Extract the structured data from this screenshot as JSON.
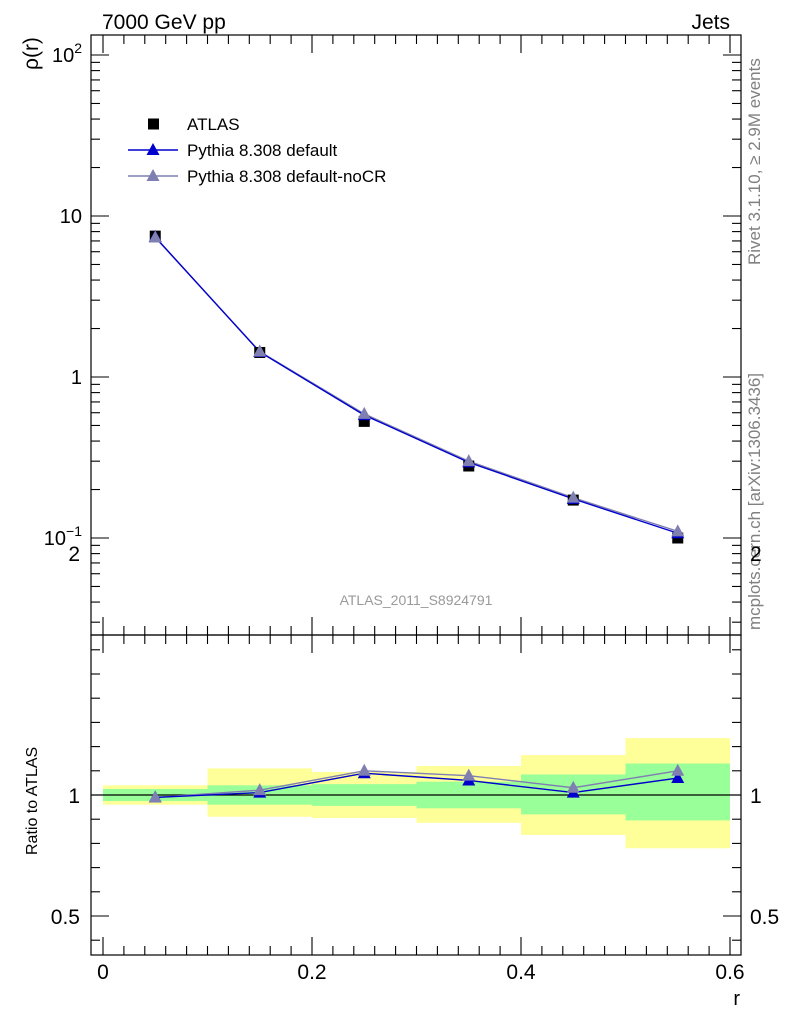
{
  "header": {
    "left_title": "7000 GeV pp",
    "right_title": "Jets"
  },
  "side_text": {
    "rivet": "Rivet 3.1.10, ≥ 2.9M events",
    "mcplots": "mcplots.cern.ch [arXiv:1306.3436]"
  },
  "analysis_label": "ATLAS_2011_S8924791",
  "colors": {
    "data": "#000000",
    "default": "#0000cc",
    "noCR": "#7f7fb2",
    "band_inner": "#99ff99",
    "band_outer": "#ffff99"
  },
  "chart_data": [
    {
      "type": "line",
      "scale": "log",
      "ylabel": "ρ(r)",
      "ylim": [
        0.03,
        130
      ],
      "xlim": [
        -0.015,
        0.6
      ],
      "y_tick_labels": [
        "10−1",
        "1",
        "10",
        "102"
      ],
      "legend": {
        "placement": "top-left",
        "entries": [
          "ATLAS",
          "Pythia 8.308 default",
          "Pythia 8.308 default-noCR"
        ]
      },
      "x": [
        0.05,
        0.15,
        0.25,
        0.35,
        0.45,
        0.55
      ],
      "series": [
        {
          "name": "ATLAS",
          "marker": "square",
          "values": [
            7.5,
            1.42,
            0.53,
            0.28,
            0.172,
            0.1
          ]
        },
        {
          "name": "Pythia 8.308 default",
          "marker": "triangle",
          "values": [
            7.4,
            1.43,
            0.58,
            0.295,
            0.175,
            0.107
          ]
        },
        {
          "name": "Pythia 8.308 default-noCR",
          "marker": "triangle",
          "values": [
            7.35,
            1.44,
            0.59,
            0.3,
            0.178,
            0.11
          ]
        }
      ]
    },
    {
      "type": "line",
      "ylabel": "Ratio to ATLAS",
      "xlabel": "r",
      "ylim": [
        0.35,
        2.25
      ],
      "xlim": [
        -0.015,
        0.6
      ],
      "x_tick_labels": [
        "0",
        "0.2",
        "0.4",
        "0.6"
      ],
      "y_tick_labels": [
        "0.5",
        "1",
        "2"
      ],
      "bands": [
        {
          "xlow": 0.0,
          "xhigh": 0.1,
          "inner": [
            0.975,
            1.025
          ],
          "outer": [
            0.96,
            1.04
          ]
        },
        {
          "xlow": 0.1,
          "xhigh": 0.2,
          "inner": [
            0.96,
            1.04
          ],
          "outer": [
            0.91,
            1.11
          ]
        },
        {
          "xlow": 0.2,
          "xhigh": 0.3,
          "inner": [
            0.955,
            1.045
          ],
          "outer": [
            0.905,
            1.095
          ]
        },
        {
          "xlow": 0.3,
          "xhigh": 0.4,
          "inner": [
            0.945,
            1.055
          ],
          "outer": [
            0.885,
            1.12
          ]
        },
        {
          "xlow": 0.4,
          "xhigh": 0.5,
          "inner": [
            0.92,
            1.085
          ],
          "outer": [
            0.835,
            1.165
          ]
        },
        {
          "xlow": 0.5,
          "xhigh": 0.6,
          "inner": [
            0.895,
            1.13
          ],
          "outer": [
            0.78,
            1.235
          ]
        }
      ],
      "x": [
        0.05,
        0.15,
        0.25,
        0.35,
        0.45,
        0.55
      ],
      "series": [
        {
          "name": "Pythia 8.308 default",
          "values": [
            0.99,
            1.01,
            1.09,
            1.06,
            1.01,
            1.07
          ]
        },
        {
          "name": "Pythia 8.308 default-noCR",
          "values": [
            0.99,
            1.02,
            1.1,
            1.08,
            1.03,
            1.1
          ]
        }
      ]
    }
  ]
}
